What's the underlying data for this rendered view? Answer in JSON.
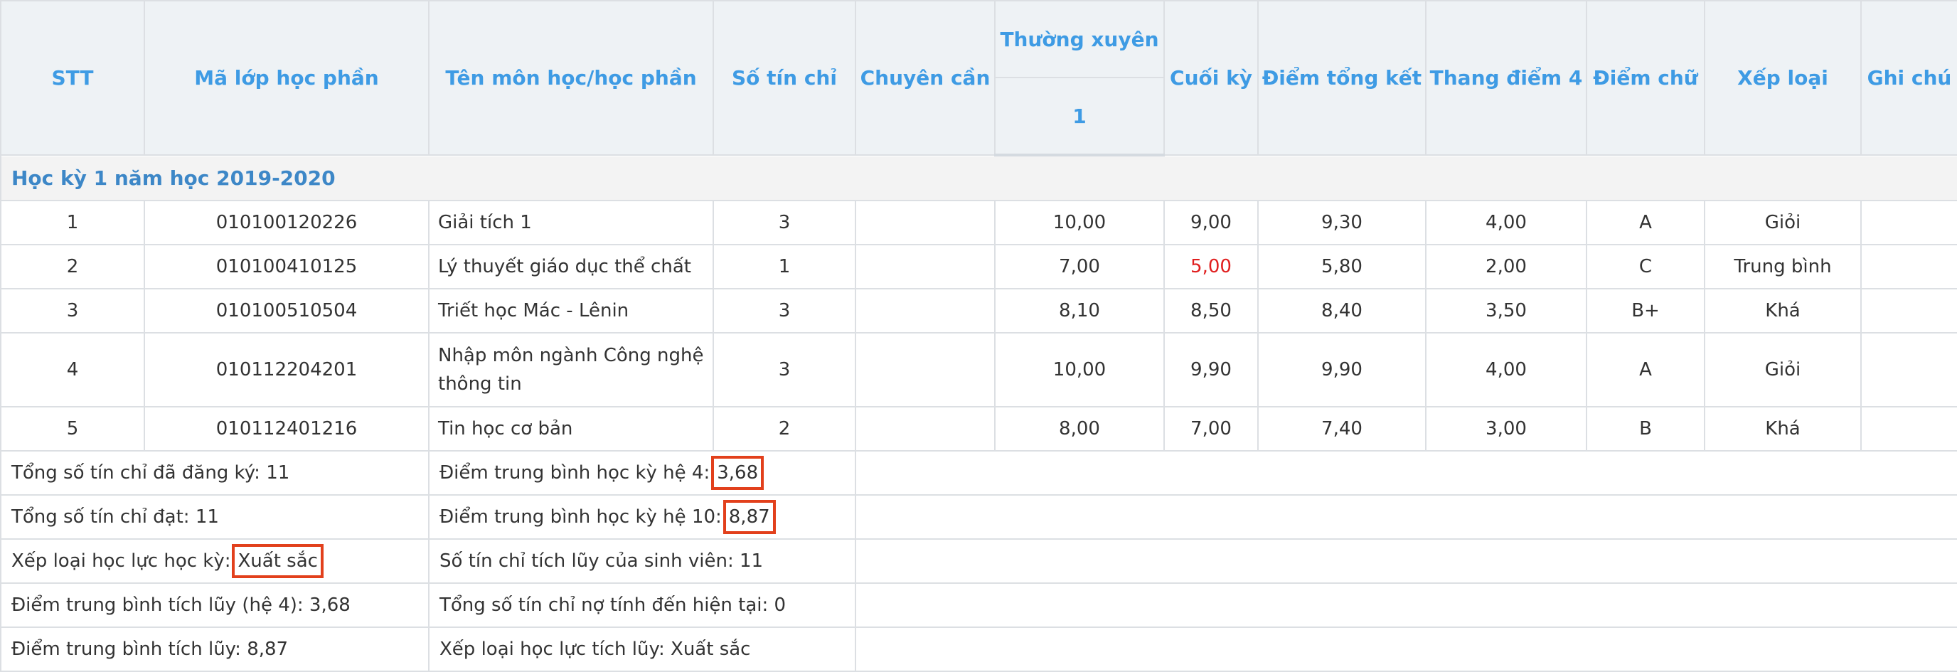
{
  "headers": {
    "stt": "STT",
    "class_code": "Mã lớp học phần",
    "course_name": "Tên môn học/học phần",
    "credits": "Số tín chỉ",
    "attendance": "Chuyên cần",
    "regular": "Thường xuyên",
    "regular_sub": "1",
    "final": "Cuối kỳ",
    "total": "Điểm tổng kết",
    "scale4": "Thang điểm 4",
    "letter": "Điểm chữ",
    "rank": "Xếp loại",
    "note": "Ghi chú"
  },
  "semester": "Học kỳ 1 năm học 2019-2020",
  "rows": [
    {
      "stt": "1",
      "code": "010100120226",
      "name": "Giải tích 1",
      "credits": "3",
      "attendance": "",
      "regular": "10,00",
      "final": "9,00",
      "total": "9,30",
      "scale4": "4,00",
      "letter": "A",
      "rank": "Giỏi",
      "note": ""
    },
    {
      "stt": "2",
      "code": "010100410125",
      "name": "Lý thuyết giáo dục thể chất",
      "credits": "1",
      "attendance": "",
      "regular": "7,00",
      "final": "5,00",
      "total": "5,80",
      "scale4": "2,00",
      "letter": "C",
      "rank": "Trung bình",
      "note": ""
    },
    {
      "stt": "3",
      "code": "010100510504",
      "name": "Triết học Mác - Lênin",
      "credits": "3",
      "attendance": "",
      "regular": "8,10",
      "final": "8,50",
      "total": "8,40",
      "scale4": "3,50",
      "letter": "B+",
      "rank": "Khá",
      "note": ""
    },
    {
      "stt": "4",
      "code": "010112204201",
      "name": "Nhập môn ngành Công nghệ thông tin",
      "credits": "3",
      "attendance": "",
      "regular": "10,00",
      "final": "9,90",
      "total": "9,90",
      "scale4": "4,00",
      "letter": "A",
      "rank": "Giỏi",
      "note": ""
    },
    {
      "stt": "5",
      "code": "010112401216",
      "name": "Tin học cơ bản",
      "credits": "2",
      "attendance": "",
      "regular": "8,00",
      "final": "7,00",
      "total": "7,40",
      "scale4": "3,00",
      "letter": "B",
      "rank": "Khá",
      "note": ""
    }
  ],
  "summary": {
    "registered_label": "Tổng số tín chỉ đã đăng ký:",
    "registered_value": "11",
    "gpa4_label": "Điểm trung bình học kỳ hệ 4:",
    "gpa4_value": "3,68",
    "passed_label": "Tổng số tín chỉ đạt:",
    "passed_value": "11",
    "gpa10_label": "Điểm trung bình học kỳ hệ 10:",
    "gpa10_value": "8,87",
    "sem_rank_label": "Xếp loại học lực học kỳ:",
    "sem_rank_value": "Xuất sắc",
    "accum_credits_label": "Số tín chỉ tích lũy của sinh viên:",
    "accum_credits_value": "11",
    "cum_gpa4_label": "Điểm trung bình tích lũy (hệ 4):",
    "cum_gpa4_value": "3,68",
    "debt_label": "Tổng số tín chỉ nợ tính đến hiện tại:",
    "debt_value": "0",
    "cum_gpa_label": "Điểm trung bình tích lũy:",
    "cum_gpa_value": "8,87",
    "cum_rank_label": "Xếp loại học lực tích lũy:",
    "cum_rank_value": "Xuất sắc"
  },
  "colors": {
    "header_text": "#3e9be4",
    "semester_text": "#3d87c7",
    "fail_text": "#e01e1e",
    "highlight_border": "#e2401c"
  }
}
